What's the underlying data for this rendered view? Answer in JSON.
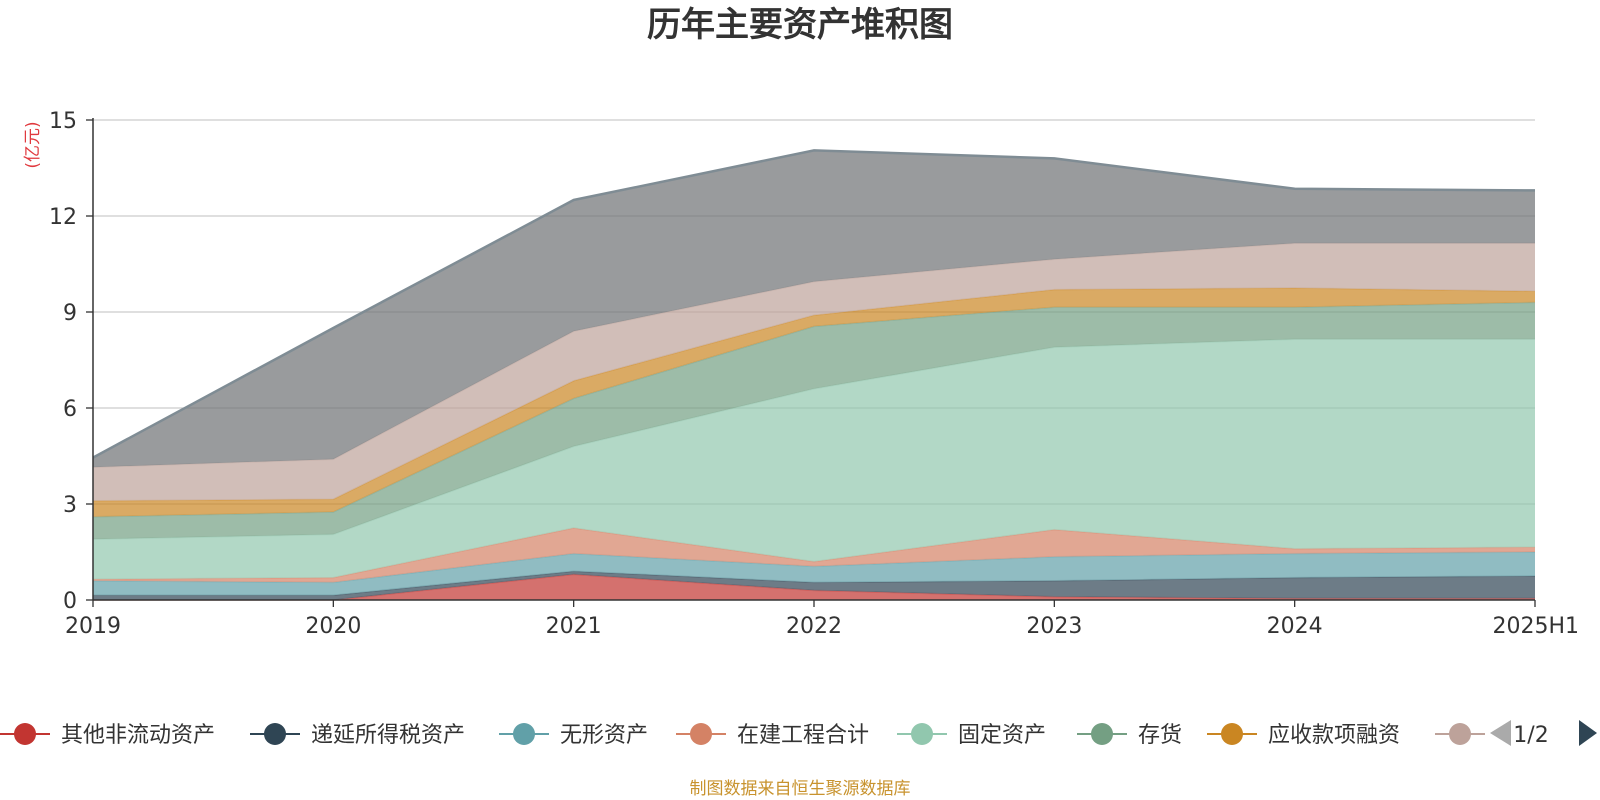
{
  "chart_data": {
    "type": "area",
    "stacked": true,
    "title": "历年主要资产堆积图",
    "ylabel": "(亿元)",
    "xlabel": "",
    "categories": [
      "2019",
      "2020",
      "2021",
      "2022",
      "2023",
      "2024",
      "2025H1"
    ],
    "ylim": [
      0,
      15
    ],
    "yticks": [
      "0",
      "3",
      "6",
      "9",
      "12",
      "15"
    ],
    "grid": true,
    "legend_position": "bottom",
    "series": [
      {
        "name": "其他非流动资产",
        "color": "#c23531",
        "values": [
          0.0,
          0.0,
          0.8,
          0.3,
          0.1,
          0.05,
          0.05
        ]
      },
      {
        "name": "递延所得税资产",
        "color": "#2f4554",
        "values": [
          0.15,
          0.15,
          0.1,
          0.25,
          0.5,
          0.65,
          0.7
        ]
      },
      {
        "name": "无形资产",
        "color": "#61a0a8",
        "values": [
          0.45,
          0.4,
          0.55,
          0.5,
          0.75,
          0.75,
          0.75
        ]
      },
      {
        "name": "在建工程合计",
        "color": "#d48265",
        "values": [
          0.05,
          0.15,
          0.8,
          0.15,
          0.85,
          0.15,
          0.15
        ]
      },
      {
        "name": "固定资产",
        "color": "#91c7ae",
        "values": [
          1.25,
          1.35,
          2.55,
          5.4,
          5.7,
          6.55,
          6.5
        ]
      },
      {
        "name": "存货",
        "color": "#749f83",
        "values": [
          0.7,
          0.7,
          1.5,
          1.95,
          1.25,
          1.0,
          1.15
        ]
      },
      {
        "name": "应收款项融资",
        "color": "#ca8622",
        "values": [
          0.5,
          0.4,
          0.55,
          0.35,
          0.55,
          0.6,
          0.35
        ]
      },
      {
        "name": "",
        "color": "#bda29a",
        "values": [
          1.05,
          1.25,
          1.55,
          1.05,
          0.95,
          1.4,
          1.5
        ]
      },
      {
        "name": "",
        "color": "#6e7074",
        "values": [
          0.3,
          4.1,
          4.1,
          4.1,
          3.15,
          1.7,
          1.65
        ]
      }
    ]
  },
  "legend": {
    "page_indicator": "1/2"
  },
  "source_note": "制图数据来自恒生聚源数据库"
}
